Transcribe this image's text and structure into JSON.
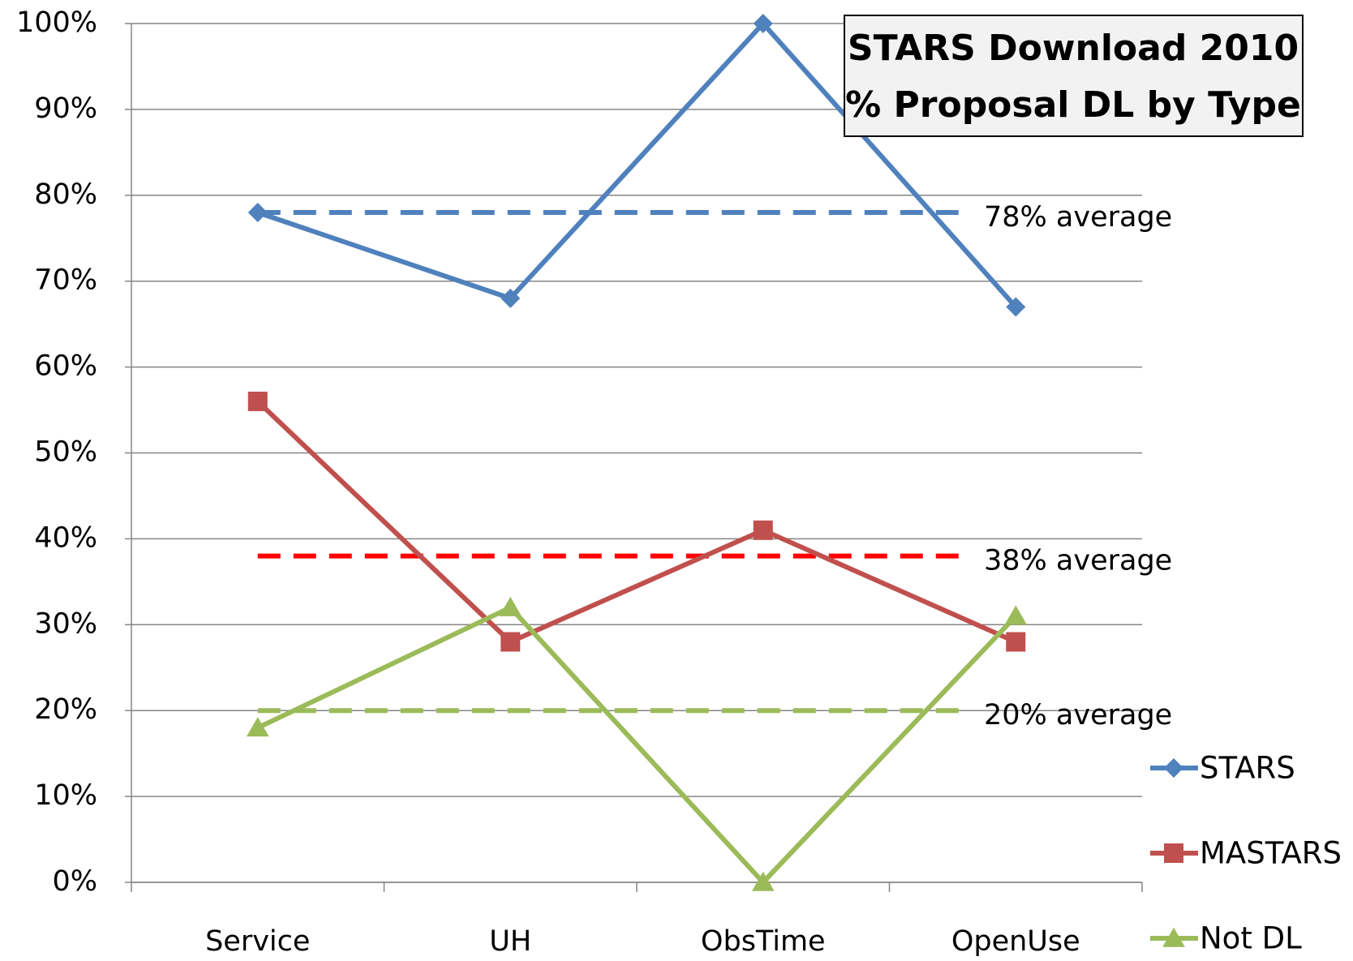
{
  "chart_data": {
    "type": "line",
    "title": [
      "STARS Download 2010",
      "% Proposal DL by Type"
    ],
    "categories": [
      "Service",
      "UH",
      "ObsTime",
      "OpenUse"
    ],
    "series": [
      {
        "name": "STARS",
        "color": "#4f81bd",
        "marker": "diamond",
        "values": [
          78,
          68,
          100,
          67
        ]
      },
      {
        "name": "MASTARS",
        "color": "#c0504d",
        "marker": "square",
        "values": [
          56,
          28,
          41,
          28
        ]
      },
      {
        "name": "Not DL",
        "color": "#9bbb59",
        "marker": "triangle",
        "values": [
          18,
          32,
          0,
          31
        ]
      }
    ],
    "averages": [
      {
        "label": "78% average",
        "value": 78,
        "color": "#4f81bd"
      },
      {
        "label": "38% average",
        "value": 38,
        "color": "#ff0000"
      },
      {
        "label": "20% average",
        "value": 20,
        "color": "#9bbb59"
      }
    ],
    "ylim": [
      0,
      100
    ],
    "yticks": [
      {
        "value": 0,
        "label": "0%"
      },
      {
        "value": 10,
        "label": "10%"
      },
      {
        "value": 20,
        "label": "20%"
      },
      {
        "value": 30,
        "label": "30%"
      },
      {
        "value": 40,
        "label": "40%"
      },
      {
        "value": 50,
        "label": "50%"
      },
      {
        "value": 60,
        "label": "60%"
      },
      {
        "value": 70,
        "label": "70%"
      },
      {
        "value": 80,
        "label": "80%"
      },
      {
        "value": 90,
        "label": "90%"
      },
      {
        "value": 100,
        "label": "100%"
      }
    ],
    "grid": true,
    "legend": "right"
  }
}
